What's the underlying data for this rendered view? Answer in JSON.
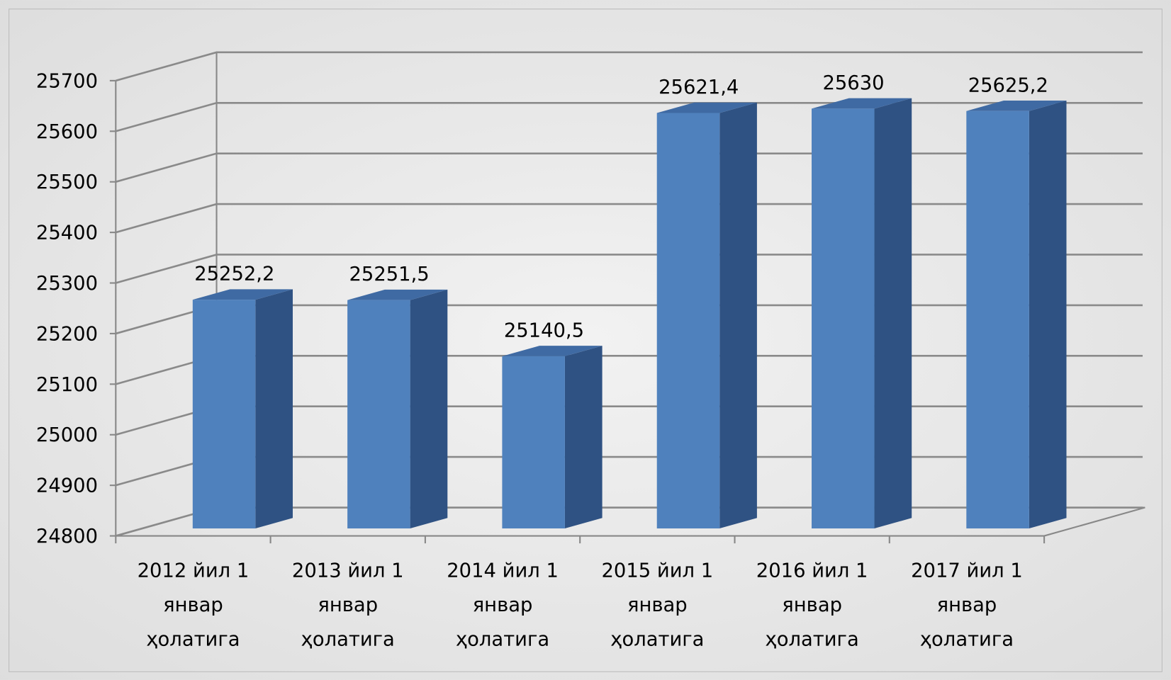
{
  "chart_data": {
    "type": "bar3d",
    "categories": [
      "2012 йил 1 январ ҳолатига",
      "2013 йил 1 январ ҳолатига",
      "2014 йил 1 январ ҳолатига",
      "2015 йил 1 январ ҳолатига",
      "2016 йил 1 январ ҳолатига",
      "2017 йил 1 январ ҳолатига"
    ],
    "values": [
      25252.2,
      25251.5,
      25140.5,
      25621.4,
      25630,
      25625.2
    ],
    "value_labels": [
      "25252,2",
      "25251,5",
      "25140,5",
      "25621,4",
      "25630",
      "25625,2"
    ],
    "color": "#4f81bd",
    "ylim": [
      24800,
      25700
    ],
    "yticks": [
      24800,
      24900,
      25000,
      25100,
      25200,
      25300,
      25400,
      25500,
      25600,
      25700
    ],
    "grid": true
  }
}
